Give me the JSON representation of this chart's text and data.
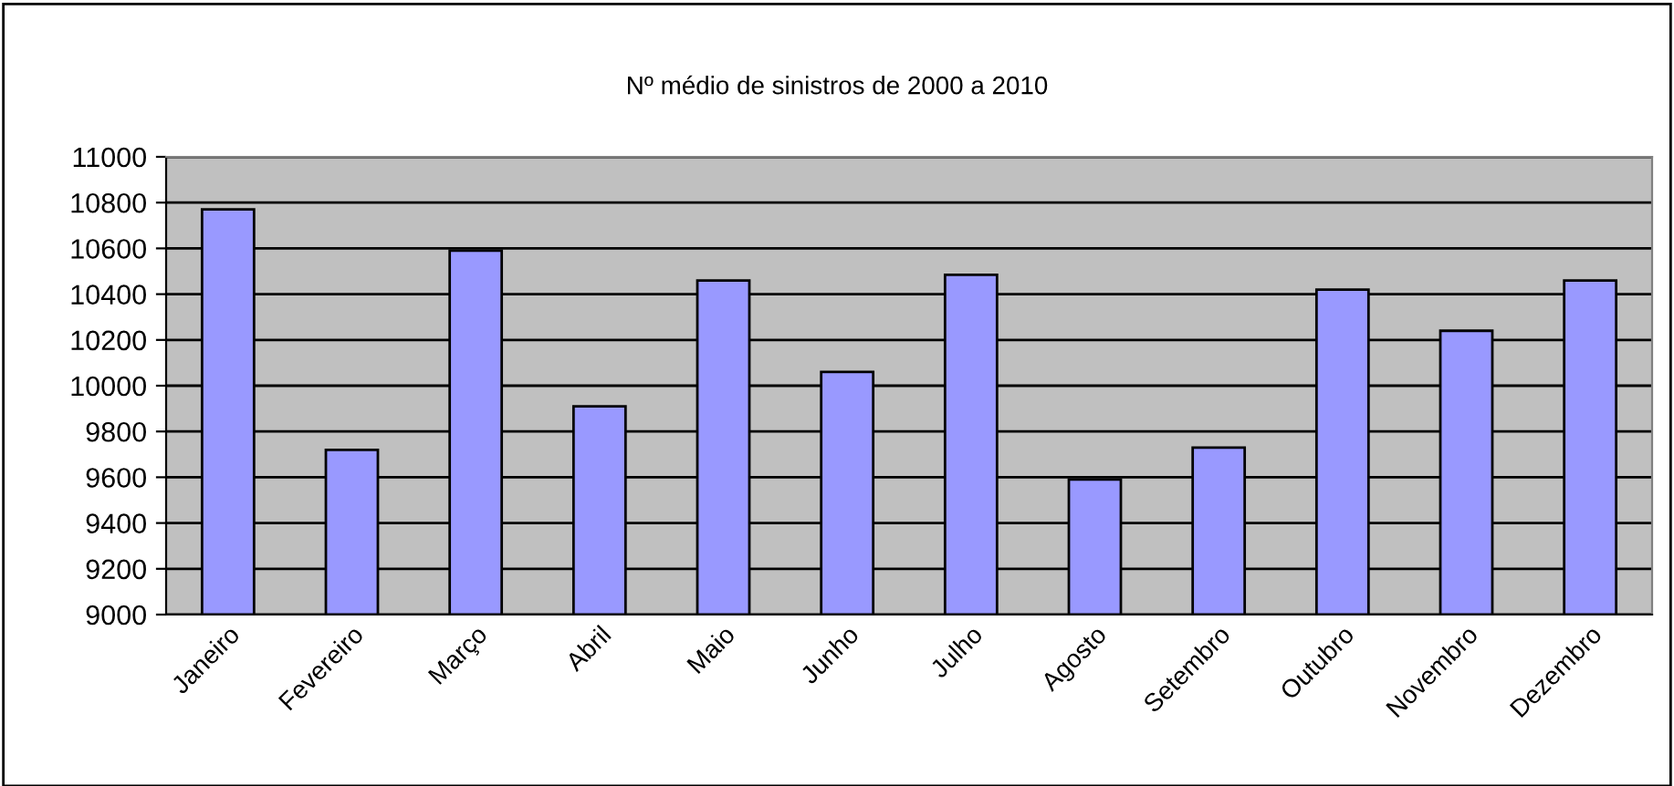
{
  "chart_data": {
    "type": "bar",
    "title": "Nº médio de sinistros de 2000 a 2010",
    "categories": [
      "Janeiro",
      "Fevereiro",
      "Março",
      "Abril",
      "Maio",
      "Junho",
      "Julho",
      "Agosto",
      "Setembro",
      "Outubro",
      "Novembro",
      "Dezembro"
    ],
    "values": [
      10770,
      9720,
      10590,
      9910,
      10460,
      10060,
      10485,
      9590,
      9730,
      10420,
      10240,
      10460
    ],
    "color": "#9999ff",
    "ylim": [
      9000,
      11000
    ],
    "yticks": [
      9000,
      9200,
      9400,
      9600,
      9800,
      10000,
      10200,
      10400,
      10600,
      10800,
      11000
    ],
    "grid": "y"
  }
}
